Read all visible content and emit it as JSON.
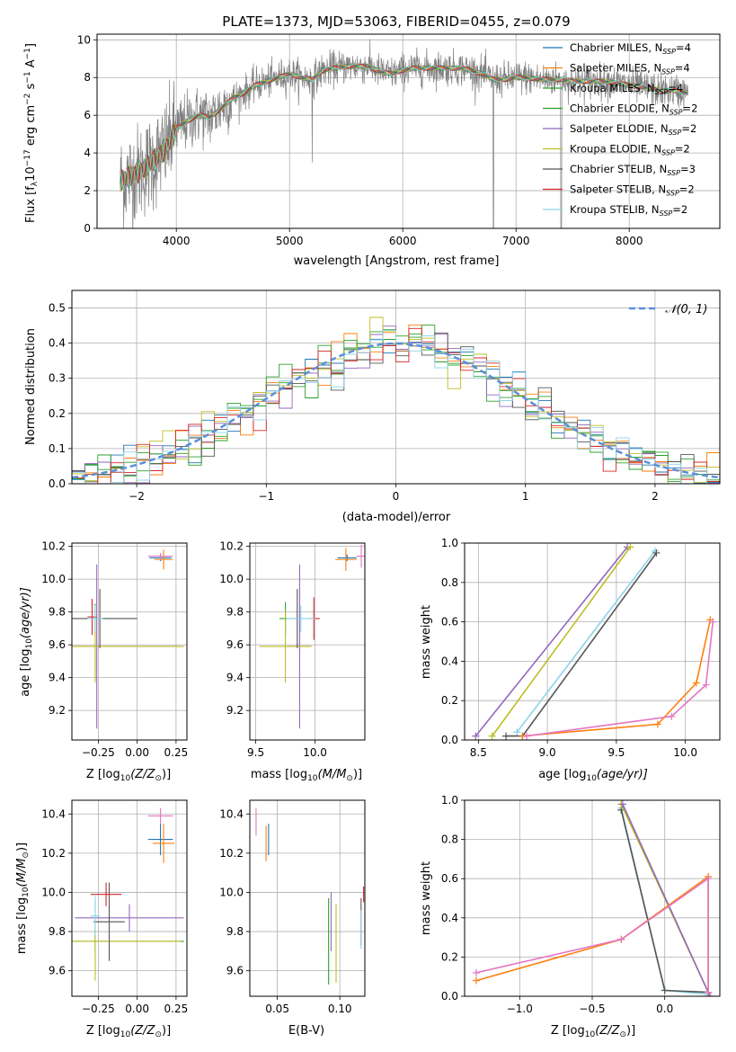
{
  "figure_title": "PLATE=1373, MJD=53063, FIBERID=0455, z=0.079",
  "model_colors": {
    "Chabrier MILES": "#1f77b4",
    "Salpeter MILES": "#ff7f0e",
    "Kroupa MILES": "#2ca02c",
    "Chabrier ELODIE": "#2ca02c",
    "Salpeter ELODIE": "#9467bd",
    "Kroupa ELODIE": "#bcbd22",
    "Chabrier STELIB": "#555555",
    "Salpeter STELIB": "#d62728",
    "Kroupa STELIB": "#8fd3e8",
    "data": "#808080",
    "gaussian": "#5b8fd9"
  },
  "chart_data": [
    {
      "id": "spectrum",
      "type": "line",
      "title": "PLATE=1373, MJD=53063, FIBERID=0455, z=0.079",
      "xlabel": "wavelength [Angstrom, rest frame]",
      "ylabel": "Flux [f",
      "ylabel_sub": "λ",
      "ylabel_rest": "10",
      "ylabel_exp": "−17",
      "ylabel_tail": " erg cm",
      "ylabel_exp2": "−2",
      "ylabel_tail2": " s",
      "ylabel_exp3": "−1",
      "ylabel_tail3": " A",
      "ylabel_exp4": "−1",
      "ylabel_end": "]",
      "xlim": [
        3300,
        8800
      ],
      "ylim": [
        0,
        10.3
      ],
      "xticks": [
        "4000",
        "5000",
        "6000",
        "7000",
        "8000"
      ],
      "yticks": [
        "0",
        "2",
        "4",
        "6",
        "8",
        "10"
      ],
      "legend_position": "right",
      "legend": [
        {
          "name": "Chabrier MILES, N",
          "sub": "SSP",
          "eq": "=4",
          "color": "#1f77b4"
        },
        {
          "name": "Salpeter MILES, N",
          "sub": "SSP",
          "eq": "=4",
          "color": "#ff7f0e"
        },
        {
          "name": "Kroupa MILES, N",
          "sub": "SSP",
          "eq": "=4",
          "color": "#2ca02c"
        },
        {
          "name": "Chabrier ELODIE, N",
          "sub": "SSP",
          "eq": "=2",
          "color": "#2ca02c"
        },
        {
          "name": "Salpeter ELODIE, N",
          "sub": "SSP",
          "eq": "=2",
          "color": "#9467bd"
        },
        {
          "name": "Kroupa ELODIE, N",
          "sub": "SSP",
          "eq": "=2",
          "color": "#bcbd22"
        },
        {
          "name": "Chabrier STELIB, N",
          "sub": "SSP",
          "eq": "=3",
          "color": "#555555"
        },
        {
          "name": "Salpeter STELIB, N",
          "sub": "SSP",
          "eq": "=2",
          "color": "#d62728"
        },
        {
          "name": "Kroupa STELIB, N",
          "sub": "SSP",
          "eq": "=2",
          "color": "#8fd3e8"
        }
      ],
      "continuum": [
        [
          3500,
          2.5
        ],
        [
          3600,
          2.8
        ],
        [
          3700,
          3.1
        ],
        [
          3800,
          3.6
        ],
        [
          3900,
          4.2
        ],
        [
          4000,
          5.3
        ],
        [
          4100,
          5.7
        ],
        [
          4200,
          6.0
        ],
        [
          4300,
          5.9
        ],
        [
          4400,
          6.4
        ],
        [
          4500,
          6.9
        ],
        [
          4600,
          7.2
        ],
        [
          4700,
          7.6
        ],
        [
          4800,
          7.8
        ],
        [
          4900,
          8.0
        ],
        [
          5000,
          8.2
        ],
        [
          5100,
          8.0
        ],
        [
          5200,
          7.9
        ],
        [
          5300,
          8.4
        ],
        [
          5400,
          8.5
        ],
        [
          5500,
          8.6
        ],
        [
          5600,
          8.6
        ],
        [
          5700,
          8.6
        ],
        [
          5800,
          8.3
        ],
        [
          5900,
          8.2
        ],
        [
          6000,
          8.4
        ],
        [
          6100,
          8.5
        ],
        [
          6200,
          8.5
        ],
        [
          6300,
          8.5
        ],
        [
          6400,
          8.5
        ],
        [
          6500,
          8.5
        ],
        [
          6600,
          8.4
        ],
        [
          6700,
          8.2
        ],
        [
          6800,
          7.9
        ],
        [
          6900,
          7.9
        ],
        [
          7000,
          8.0
        ],
        [
          7100,
          8.0
        ],
        [
          7200,
          7.9
        ],
        [
          7300,
          7.9
        ],
        [
          7400,
          7.9
        ],
        [
          7500,
          7.8
        ],
        [
          7600,
          7.8
        ],
        [
          7700,
          7.8
        ],
        [
          7800,
          7.8
        ],
        [
          7900,
          7.7
        ],
        [
          8000,
          7.6
        ],
        [
          8100,
          7.5
        ],
        [
          8200,
          7.4
        ],
        [
          8300,
          7.3
        ],
        [
          8400,
          7.3
        ],
        [
          8500,
          7.2
        ]
      ]
    },
    {
      "id": "residuals",
      "type": "step",
      "xlabel": "(data-model)/error",
      "ylabel": "Normed distribution",
      "xlim": [
        -2.5,
        2.5
      ],
      "ylim": [
        0,
        0.55
      ],
      "xticks": [
        "−2",
        "−1",
        "0",
        "1",
        "2"
      ],
      "yticks": [
        "0.0",
        "0.1",
        "0.2",
        "0.3",
        "0.4",
        "0.5"
      ],
      "legend_position": "top-right",
      "legend": [
        {
          "name": "𝒩(0, 1)",
          "color": "#5b8fd9",
          "style": "dashed"
        }
      ]
    },
    {
      "id": "age_vs_Z",
      "type": "errorbar",
      "xlabel": "Z [log",
      "xlabel_sub": "10",
      "xlabel_rest": "(Z/Z",
      "xlabel_sub2": "⊙",
      "xlabel_end": ")]",
      "ylabel": "age  [log",
      "ylabel_sub": "10",
      "ylabel_rest": "(age/yr)]",
      "xlim": [
        -0.42,
        0.32
      ],
      "ylim": [
        9.02,
        10.22
      ],
      "xticks": [
        "−0.25",
        "0.00",
        "0.25"
      ],
      "yticks": [
        "9.2",
        "9.4",
        "9.6",
        "9.8",
        "10.0",
        "10.2"
      ],
      "points": [
        {
          "x": 0.15,
          "y": 10.13,
          "xerr": 0.07,
          "yerr": 0.02,
          "color": "#1f77b4"
        },
        {
          "x": 0.17,
          "y": 10.12,
          "xerr": 0.06,
          "yerr": 0.06,
          "color": "#ff7f0e"
        },
        {
          "x": 0.15,
          "y": 10.14,
          "xerr": 0.08,
          "yerr": 0.02,
          "color": "#e377c2"
        },
        {
          "x": -0.27,
          "y": 9.76,
          "xerr": 0.03,
          "yerr": 0.09,
          "color": "#2ca02c"
        },
        {
          "x": -0.26,
          "y": 9.59,
          "xerr": 0.55,
          "yerr": 0.5,
          "color": "#9467bd"
        },
        {
          "x": -0.27,
          "y": 9.59,
          "xerr": 0.57,
          "yerr": 0.22,
          "color": "#bcbd22"
        },
        {
          "x": -0.24,
          "y": 9.76,
          "xerr": 0.24,
          "yerr": 0.18,
          "color": "#555555"
        },
        {
          "x": -0.29,
          "y": 9.77,
          "xerr": 0.03,
          "yerr": 0.11,
          "color": "#d62728"
        },
        {
          "x": -0.27,
          "y": 9.76,
          "xerr": 0.05,
          "yerr": 0.08,
          "color": "#8fd3e8"
        }
      ]
    },
    {
      "id": "age_vs_mass",
      "type": "errorbar",
      "xlabel": "mass [log",
      "xlabel_sub": "10",
      "xlabel_rest": "(M/M",
      "xlabel_sub2": "⊙",
      "xlabel_end": ")]",
      "xlim": [
        9.45,
        10.42
      ],
      "ylim": [
        9.02,
        10.22
      ],
      "xticks": [
        "9.5",
        "10.0"
      ],
      "yticks": [
        "9.2",
        "9.4",
        "9.6",
        "9.8",
        "10.0",
        "10.2"
      ],
      "points": [
        {
          "x": 10.27,
          "y": 10.13,
          "xerr": 0.08,
          "yerr": 0.02,
          "color": "#1f77b4"
        },
        {
          "x": 10.26,
          "y": 10.12,
          "xerr": 0.09,
          "yerr": 0.07,
          "color": "#ff7f0e"
        },
        {
          "x": 10.39,
          "y": 10.14,
          "xerr": 0.04,
          "yerr": 0.07,
          "color": "#e377c2"
        },
        {
          "x": 9.75,
          "y": 9.76,
          "xerr": 0.05,
          "yerr": 0.1,
          "color": "#2ca02c"
        },
        {
          "x": 9.87,
          "y": 9.59,
          "xerr": 0.1,
          "yerr": 0.5,
          "color": "#9467bd"
        },
        {
          "x": 9.75,
          "y": 9.59,
          "xerr": 0.22,
          "yerr": 0.22,
          "color": "#bcbd22"
        },
        {
          "x": 9.85,
          "y": 9.76,
          "xerr": 0.05,
          "yerr": 0.18,
          "color": "#555555"
        },
        {
          "x": 9.99,
          "y": 9.76,
          "xerr": 0.05,
          "yerr": 0.13,
          "color": "#d62728"
        },
        {
          "x": 9.88,
          "y": 9.76,
          "xerr": 0.12,
          "yerr": 0.08,
          "color": "#8fd3e8"
        }
      ]
    },
    {
      "id": "weight_vs_age",
      "type": "line",
      "xlabel": "age  [log",
      "xlabel_sub": "10",
      "xlabel_rest": "(age/yr)]",
      "ylabel": "mass weight",
      "xlim": [
        8.4,
        10.25
      ],
      "ylim": [
        0,
        1
      ],
      "xticks": [
        "8.5",
        "9.0",
        "9.5",
        "10.0"
      ],
      "yticks": [
        "0.0",
        "0.2",
        "0.4",
        "0.6",
        "0.8",
        "1.0"
      ],
      "series": [
        {
          "color": "#9467bd",
          "x": [
            8.48,
            9.58
          ],
          "y": [
            0.02,
            0.98
          ]
        },
        {
          "color": "#bcbd22",
          "x": [
            8.6,
            9.6
          ],
          "y": [
            0.02,
            0.98
          ]
        },
        {
          "color": "#8fd3e8",
          "x": [
            8.78,
            9.78
          ],
          "y": [
            0.04,
            0.96
          ]
        },
        {
          "color": "#555555",
          "x": [
            8.7,
            8.82,
            9.79
          ],
          "y": [
            0.02,
            0.02,
            0.95
          ]
        },
        {
          "color": "#ff7f0e",
          "x": [
            8.82,
            9.8,
            10.08,
            10.18
          ],
          "y": [
            0.02,
            0.08,
            0.29,
            0.61
          ]
        },
        {
          "color": "#e377c2",
          "x": [
            8.85,
            9.9,
            10.15,
            10.2
          ],
          "y": [
            0.02,
            0.12,
            0.28,
            0.6
          ]
        }
      ]
    },
    {
      "id": "mass_vs_Z",
      "type": "errorbar",
      "xlabel": "Z [log",
      "xlabel_sub": "10",
      "xlabel_rest": "(Z/Z",
      "xlabel_sub2": "⊙",
      "xlabel_end": ")]",
      "ylabel": "mass [log",
      "ylabel_sub": "10",
      "ylabel_rest": "(M/M",
      "ylabel_sub2": "⊙",
      "ylabel_end": ")]",
      "xlim": [
        -0.42,
        0.32
      ],
      "ylim": [
        9.47,
        10.47
      ],
      "xticks": [
        "−0.25",
        "0.00",
        "0.25"
      ],
      "yticks": [
        "9.6",
        "9.8",
        "10.0",
        "10.2",
        "10.4"
      ],
      "points": [
        {
          "x": 0.15,
          "y": 10.27,
          "xerr": 0.08,
          "yerr": 0.08,
          "color": "#1f77b4"
        },
        {
          "x": 0.17,
          "y": 10.25,
          "xerr": 0.07,
          "yerr": 0.1,
          "color": "#ff7f0e"
        },
        {
          "x": 0.15,
          "y": 10.39,
          "xerr": 0.08,
          "yerr": 0.04,
          "color": "#e377c2"
        },
        {
          "x": -0.27,
          "y": 9.75,
          "xerr": 0.57,
          "yerr": 0.06,
          "color": "#2ca02c"
        },
        {
          "x": -0.05,
          "y": 9.87,
          "xerr": 0.35,
          "yerr": 0.07,
          "color": "#9467bd"
        },
        {
          "x": -0.27,
          "y": 9.75,
          "xerr": 0.55,
          "yerr": 0.2,
          "color": "#bcbd22"
        },
        {
          "x": -0.18,
          "y": 9.85,
          "xerr": 0.1,
          "yerr": 0.2,
          "color": "#555555"
        },
        {
          "x": -0.2,
          "y": 9.99,
          "xerr": 0.1,
          "yerr": 0.06,
          "color": "#d62728"
        },
        {
          "x": -0.27,
          "y": 9.88,
          "xerr": 0.03,
          "yerr": 0.1,
          "color": "#8fd3e8"
        }
      ]
    },
    {
      "id": "mass_vs_EBV",
      "type": "errorbar",
      "xlabel": "E(B-V)",
      "xlim": [
        0.028,
        0.12
      ],
      "ylim": [
        9.47,
        10.47
      ],
      "xticks": [
        "0.05",
        "0.10"
      ],
      "yticks": [
        "9.6",
        "9.8",
        "10.0",
        "10.2",
        "10.4"
      ],
      "points": [
        {
          "x": 0.043,
          "y": 10.27,
          "xerr": 0.0,
          "yerr": 0.08,
          "color": "#1f77b4"
        },
        {
          "x": 0.041,
          "y": 10.25,
          "xerr": 0.0,
          "yerr": 0.09,
          "color": "#ff7f0e"
        },
        {
          "x": 0.033,
          "y": 10.36,
          "xerr": 0.0,
          "yerr": 0.07,
          "color": "#e377c2"
        },
        {
          "x": 0.091,
          "y": 9.75,
          "xerr": 0.0,
          "yerr": 0.22,
          "color": "#2ca02c"
        },
        {
          "x": 0.093,
          "y": 9.85,
          "xerr": 0.0,
          "yerr": 0.15,
          "color": "#9467bd"
        },
        {
          "x": 0.097,
          "y": 9.74,
          "xerr": 0.0,
          "yerr": 0.2,
          "color": "#bcbd22"
        },
        {
          "x": 0.117,
          "y": 9.85,
          "xerr": 0.0,
          "yerr": 0.12,
          "color": "#555555"
        },
        {
          "x": 0.119,
          "y": 9.99,
          "xerr": 0.0,
          "yerr": 0.04,
          "color": "#d62728"
        },
        {
          "x": 0.117,
          "y": 9.81,
          "xerr": 0.0,
          "yerr": 0.1,
          "color": "#8fd3e8"
        }
      ]
    },
    {
      "id": "weight_vs_Z",
      "type": "line",
      "xlabel": "Z [log",
      "xlabel_sub": "10",
      "xlabel_rest": "(Z/Z",
      "xlabel_sub2": "⊙",
      "xlabel_end": ")]",
      "ylabel": "mass weight",
      "xlim": [
        -1.38,
        0.38
      ],
      "ylim": [
        0,
        1
      ],
      "xticks": [
        "−1.0",
        "−0.5",
        "0.0"
      ],
      "yticks": [
        "0.0",
        "0.2",
        "0.4",
        "0.6",
        "0.8",
        "1.0"
      ],
      "series": [
        {
          "color": "#8fd3e8",
          "x": [
            -0.3,
            0.0,
            0.3
          ],
          "y": [
            0.96,
            0.03,
            0.01
          ]
        },
        {
          "color": "#555555",
          "x": [
            -0.3,
            0.0,
            0.3
          ],
          "y": [
            0.95,
            0.03,
            0.02
          ]
        },
        {
          "color": "#bcbd22",
          "x": [
            -0.3,
            0.3,
            0.3
          ],
          "y": [
            0.98,
            0.02,
            0.0
          ]
        },
        {
          "color": "#9467bd",
          "x": [
            -0.29,
            0.3,
            0.31
          ],
          "y": [
            0.98,
            0.02,
            0.0
          ]
        },
        {
          "color": "#ff7f0e",
          "x": [
            -1.3,
            -0.3,
            0.3,
            0.3
          ],
          "y": [
            0.08,
            0.29,
            0.61,
            0.02
          ]
        },
        {
          "color": "#e377c2",
          "x": [
            -1.3,
            -0.3,
            0.3,
            0.3
          ],
          "y": [
            0.12,
            0.29,
            0.6,
            0.02
          ]
        }
      ]
    }
  ]
}
